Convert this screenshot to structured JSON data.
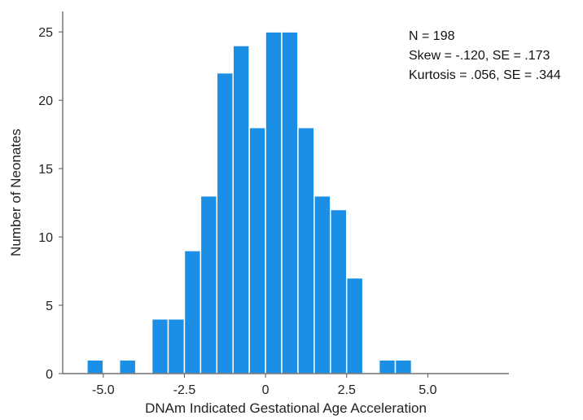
{
  "chart_data": {
    "type": "bar",
    "subtype": "histogram",
    "title": "",
    "xlabel": "DNAm Indicated Gestational Age Acceleration",
    "ylabel": "Number of Neonates",
    "xlim": [
      -6.25,
      7.5
    ],
    "ylim": [
      0,
      26.5
    ],
    "xticks": [
      -5.0,
      -2.5,
      0,
      2.5,
      5.0
    ],
    "xtick_labels": [
      "-5.0",
      "-2.5",
      "0",
      "2.5",
      "5.0"
    ],
    "yticks": [
      0,
      5,
      10,
      15,
      20,
      25
    ],
    "ytick_labels": [
      "0",
      "5",
      "10",
      "15",
      "20",
      "25"
    ],
    "bin_width": 0.5,
    "bins": [
      {
        "x0": -5.5,
        "count": 1
      },
      {
        "x0": -4.5,
        "count": 1
      },
      {
        "x0": -3.5,
        "count": 4
      },
      {
        "x0": -3.0,
        "count": 4
      },
      {
        "x0": -2.5,
        "count": 9
      },
      {
        "x0": -2.0,
        "count": 13
      },
      {
        "x0": -1.5,
        "count": 22
      },
      {
        "x0": -1.0,
        "count": 24
      },
      {
        "x0": -0.5,
        "count": 18
      },
      {
        "x0": 0.0,
        "count": 25
      },
      {
        "x0": 0.5,
        "count": 25
      },
      {
        "x0": 1.0,
        "count": 18
      },
      {
        "x0": 1.5,
        "count": 13
      },
      {
        "x0": 2.0,
        "count": 12
      },
      {
        "x0": 2.5,
        "count": 7
      },
      {
        "x0": 3.5,
        "count": 1
      },
      {
        "x0": 4.0,
        "count": 1
      }
    ],
    "bar_color": "#1b8fe6",
    "bar_edge_color": "#ffffff",
    "grid": false,
    "annotations": [
      "N = 198",
      "Skew = -.120, SE = .173",
      "Kurtosis = .056, SE = .344"
    ]
  }
}
